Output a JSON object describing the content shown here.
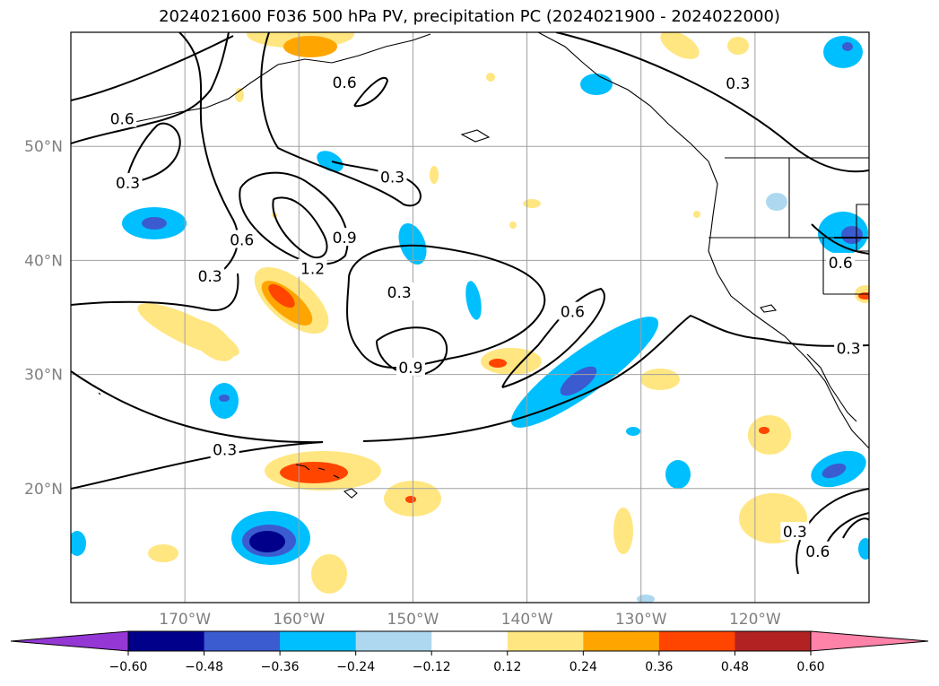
{
  "title": "2024021600 F036 500 hPa PV, precipitation PC (2024021900 - 2024022000)",
  "map": {
    "projection": "PlateCarree",
    "lon_range": [
      -180,
      -110
    ],
    "lat_range": [
      10,
      60
    ],
    "grid": true,
    "lat_ticks": [
      {
        "value": 20,
        "label": "20°N"
      },
      {
        "value": 30,
        "label": "30°N"
      },
      {
        "value": 40,
        "label": "40°N"
      },
      {
        "value": 50,
        "label": "50°N"
      }
    ],
    "lon_ticks": [
      {
        "value": -170,
        "label": "170°W"
      },
      {
        "value": -160,
        "label": "160°W"
      },
      {
        "value": -150,
        "label": "150°W"
      },
      {
        "value": -140,
        "label": "140°W"
      },
      {
        "value": -130,
        "label": "130°W"
      },
      {
        "value": -120,
        "label": "120°W"
      }
    ],
    "contour_labels": [
      {
        "text": "0.6",
        "lon": -156.0,
        "lat": 55.6
      },
      {
        "text": "0.6",
        "lon": -175.5,
        "lat": 52.4
      },
      {
        "text": "0.3",
        "lon": -175.0,
        "lat": 46.8
      },
      {
        "text": "0.6",
        "lon": -165.0,
        "lat": 41.8
      },
      {
        "text": "0.3",
        "lon": -167.8,
        "lat": 38.6
      },
      {
        "text": "1.2",
        "lon": -158.8,
        "lat": 39.3
      },
      {
        "text": "0.9",
        "lon": -156.0,
        "lat": 42.0
      },
      {
        "text": "0.3",
        "lon": -151.8,
        "lat": 47.3
      },
      {
        "text": "0.3",
        "lon": -151.2,
        "lat": 37.2
      },
      {
        "text": "0.9",
        "lon": -150.2,
        "lat": 30.6
      },
      {
        "text": "0.6",
        "lon": -136.0,
        "lat": 35.5
      },
      {
        "text": "0.3",
        "lon": -121.5,
        "lat": 55.5
      },
      {
        "text": "0.6",
        "lon": -112.5,
        "lat": 39.8
      },
      {
        "text": "0.3",
        "lon": -111.8,
        "lat": 32.3
      },
      {
        "text": "0.3",
        "lon": -166.5,
        "lat": 23.4
      },
      {
        "text": "0.3",
        "lon": -116.5,
        "lat": 16.2
      },
      {
        "text": "0.6",
        "lon": -114.5,
        "lat": 14.5
      }
    ]
  },
  "colorbar": {
    "colors": [
      "#9437d4",
      "#00008b",
      "#3b5bd1",
      "#00bfff",
      "#add8f0",
      "#ffffff",
      "#ffe680",
      "#ffa500",
      "#ff4500",
      "#b22222",
      "#ff82a8"
    ],
    "tick_labels": [
      "−0.60",
      "−0.48",
      "−0.36",
      "−0.24",
      "−0.12",
      "0.12",
      "0.24",
      "0.36",
      "0.48",
      "0.60"
    ]
  }
}
